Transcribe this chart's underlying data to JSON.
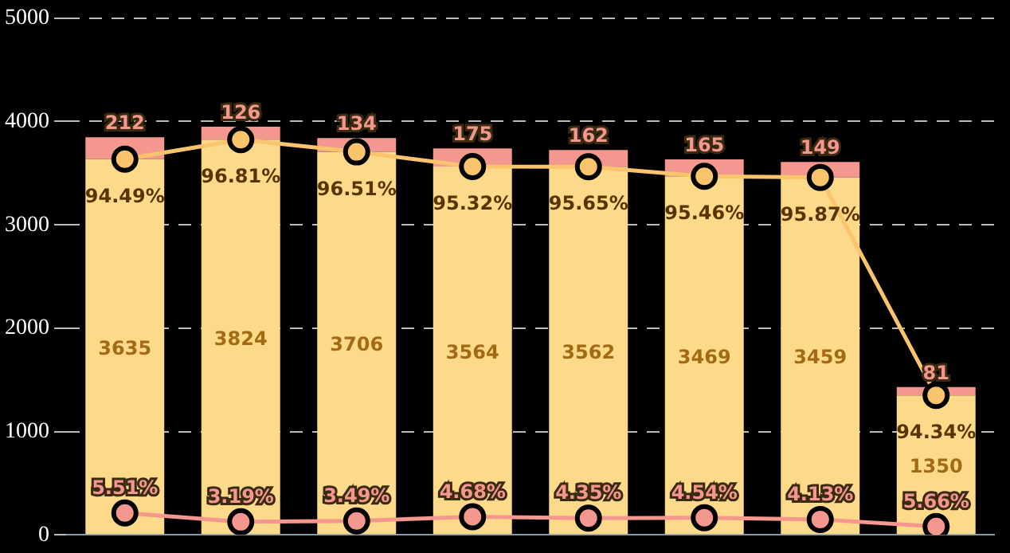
{
  "chart_data": {
    "type": "bar",
    "stacked": true,
    "categories": [
      null,
      null,
      null,
      null,
      null,
      null,
      null,
      null
    ],
    "series": [
      {
        "color": "#fdd98a",
        "values": [
          3635,
          3824,
          3706,
          3564,
          3562,
          3469,
          3459,
          1350
        ],
        "value_labels": [
          "3635",
          "3824",
          "3706",
          "3564",
          "3562",
          "3469",
          "3459",
          "1350"
        ]
      },
      {
        "color": "#f4978e",
        "values": [
          212,
          126,
          134,
          175,
          162,
          165,
          149,
          81
        ],
        "value_labels": [
          "212",
          "126",
          "134",
          "175",
          "162",
          "165",
          "149",
          "81"
        ]
      },
      {
        "type": "line",
        "color": "#f9c46b",
        "values": [
          3635,
          3824,
          3706,
          3564,
          3562,
          3469,
          3459,
          1350
        ]
      },
      {
        "type": "line",
        "color": "#f4978e",
        "values": [
          212,
          126,
          134,
          175,
          162,
          165,
          149,
          81
        ]
      }
    ],
    "annotations": [
      "94.49%",
      "96.81%",
      "96.51%",
      "95.32%",
      "95.65%",
      "95.46%",
      "95.87%",
      "94.34%",
      "5.51%",
      "3.19%",
      "3.49%",
      "4.68%",
      "4.35%",
      "4.54%",
      "4.13%",
      "5.66%"
    ],
    "ylim": [
      0,
      5000
    ],
    "yticks": [
      0,
      1000,
      2000,
      3000,
      4000,
      5000
    ],
    "grid": "y",
    "marker": "circle",
    "tick_labels": "y"
  }
}
